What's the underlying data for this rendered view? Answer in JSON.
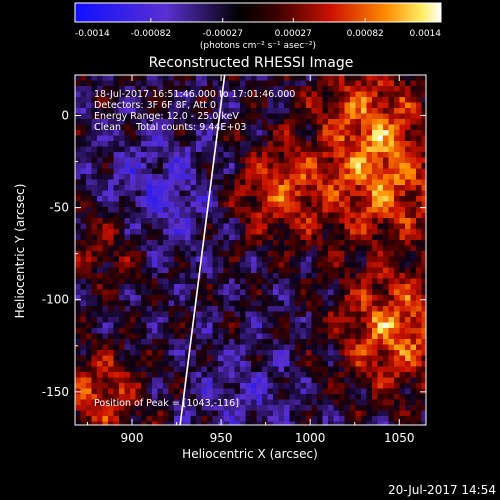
{
  "colorbar": {
    "tick_labels": [
      "-0.0014",
      "-0.00082",
      "-0.00027",
      "0.00027",
      "0.00082",
      "0.0014"
    ],
    "tick_values": [
      -0.0014,
      -0.00082,
      -0.00027,
      0.00027,
      0.00082,
      0.0014
    ],
    "range": [
      -0.0014,
      0.0014
    ],
    "unit_label": "(photons cm⁻² s⁻¹ asec⁻²)",
    "colors": [
      "#0000ff",
      "#000000",
      "#cc0000",
      "#ff8800",
      "#ffff88",
      "#ffffff"
    ]
  },
  "chart_data": {
    "type": "heatmap",
    "title": "Reconstructed RHESSI Image",
    "xlabel": "Heliocentric X (arcsec)",
    "ylabel": "Heliocentric Y (arcsec)",
    "xlim": [
      868,
      1065
    ],
    "ylim": [
      -168,
      22
    ],
    "x_ticks": [
      900,
      950,
      1000,
      1050
    ],
    "y_ticks": [
      0,
      -50,
      -100,
      -150
    ],
    "x_tick_labels": [
      "900",
      "950",
      "1000",
      "1050"
    ],
    "y_tick_labels": [
      "0",
      "-50",
      "-100",
      "-150"
    ],
    "annotations": [
      "18-Jul-2017 16:51:46.000 to 17:01:46.000",
      "Detectors: 3F 6F 8F, Att 0",
      "Energy Range: 12.0 - 25.0 keV",
      "Clean     Total counts: 9.44E+03"
    ],
    "peak_label": "Position of Peak = [1043,-116]",
    "peak": [
      1043,
      -116
    ],
    "limb_line": [
      [
        927,
        -168
      ],
      [
        952,
        22
      ]
    ]
  },
  "footer_timestamp": "20-Jul-2017 14:54"
}
